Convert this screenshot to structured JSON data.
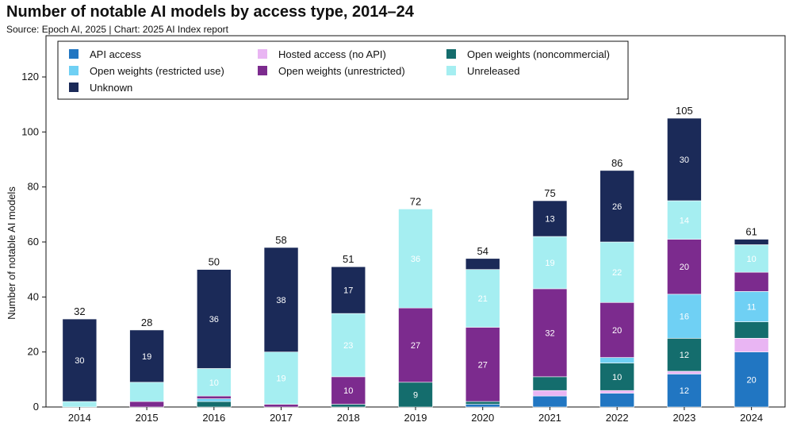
{
  "chart_data": {
    "type": "bar",
    "stacked": true,
    "title": "Number of notable AI models by access type, 2014–24",
    "subtitle": "Source: Epoch AI, 2025 | Chart: 2025 AI Index report",
    "xlabel": "",
    "ylabel": "Number of notable AI models",
    "ylim": [
      0,
      135
    ],
    "yticks": [
      0,
      20,
      40,
      60,
      80,
      100,
      120
    ],
    "legend_position": "top-left",
    "categories": [
      "2014",
      "2015",
      "2016",
      "2017",
      "2018",
      "2019",
      "2020",
      "2021",
      "2022",
      "2023",
      "2024"
    ],
    "totals": [
      32,
      28,
      50,
      58,
      51,
      72,
      54,
      75,
      86,
      105,
      61
    ],
    "series": [
      {
        "name": "API access",
        "color": "#2176c2",
        "values": [
          0,
          0,
          0,
          0,
          0,
          0,
          1,
          4,
          5,
          12,
          20
        ]
      },
      {
        "name": "Hosted access (no API)",
        "color": "#e9b5f3",
        "values": [
          0,
          0,
          0,
          0,
          0,
          0,
          0,
          2,
          1,
          1,
          5
        ]
      },
      {
        "name": "Open weights (noncommercial)",
        "color": "#146d6d",
        "values": [
          0,
          0,
          2,
          0,
          1,
          9,
          1,
          5,
          10,
          12,
          6
        ]
      },
      {
        "name": "Open weights (restricted use)",
        "color": "#6fd0f4",
        "values": [
          0,
          0,
          1,
          0,
          0,
          0,
          0,
          0,
          2,
          16,
          11
        ]
      },
      {
        "name": "Open weights (unrestricted)",
        "color": "#7c2b8e",
        "values": [
          0,
          2,
          1,
          1,
          10,
          27,
          27,
          32,
          20,
          20,
          7
        ]
      },
      {
        "name": "Unreleased",
        "color": "#a5eef1",
        "values": [
          2,
          7,
          10,
          19,
          23,
          36,
          21,
          19,
          22,
          14,
          10
        ]
      },
      {
        "name": "Unknown",
        "color": "#1b2a58",
        "values": [
          30,
          19,
          36,
          38,
          17,
          0,
          4,
          13,
          26,
          30,
          2
        ]
      }
    ],
    "data_labels": {
      "API access": [
        null,
        null,
        null,
        null,
        null,
        null,
        null,
        null,
        null,
        "12",
        "20"
      ],
      "Hosted access (no API)": [
        null,
        null,
        null,
        null,
        null,
        null,
        null,
        null,
        null,
        null,
        null
      ],
      "Open weights (noncommercial)": [
        null,
        null,
        null,
        null,
        null,
        "9",
        null,
        null,
        "10",
        "12",
        null
      ],
      "Open weights (restricted use)": [
        null,
        null,
        null,
        null,
        null,
        null,
        null,
        null,
        null,
        "16",
        "11"
      ],
      "Open weights (unrestricted)": [
        null,
        null,
        null,
        null,
        "10",
        "27",
        "27",
        "32",
        "20",
        "20",
        null
      ],
      "Unreleased": [
        null,
        null,
        "10",
        "19",
        "23",
        "36",
        "21",
        "19",
        "22",
        "14",
        "10"
      ],
      "Unknown": [
        "30",
        "19",
        "36",
        "38",
        "17",
        null,
        null,
        "13",
        "26",
        "30",
        null
      ]
    },
    "legend_order": [
      "API access",
      "Hosted access (no API)",
      "Open weights (noncommercial)",
      "Open weights (restricted use)",
      "Open weights (unrestricted)",
      "Unreleased",
      "Unknown"
    ]
  }
}
